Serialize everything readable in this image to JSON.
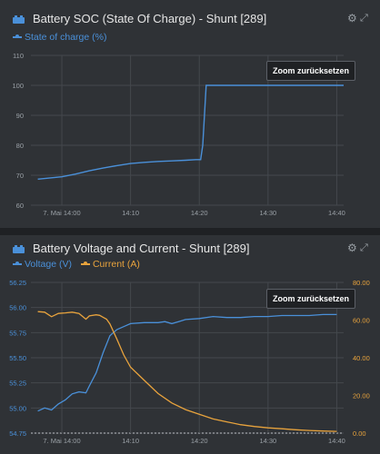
{
  "charts": [
    {
      "title": "Battery SOC (State Of Charge) - Shunt [289]",
      "legend": [
        {
          "label": "State of charge (%)",
          "color": "#4a90d9"
        }
      ],
      "zoom_label": "Zoom zurücksetzen",
      "icons": [
        "battery-icon",
        "gear-icon",
        "expand-icon"
      ]
    },
    {
      "title": "Battery Voltage and Current - Shunt [289]",
      "legend": [
        {
          "label": "Voltage (V)",
          "color": "#4a90d9"
        },
        {
          "label": "Current (A)",
          "color": "#e8a33d"
        }
      ],
      "zoom_label": "Zoom zurücksetzen",
      "icons": [
        "battery-icon",
        "gear-icon",
        "expand-icon"
      ]
    }
  ],
  "chart_data": [
    {
      "type": "line",
      "title": "Battery SOC (State Of Charge) - Shunt [289]",
      "x_ticks": [
        "7. Mai 14:00",
        "14:10",
        "14:20",
        "14:30",
        "14:40"
      ],
      "x_range_minutes": [
        -4.5,
        41
      ],
      "ylim": [
        60,
        110
      ],
      "y_ticks": [
        60,
        70,
        80,
        90,
        100,
        110
      ],
      "grid": true,
      "series": [
        {
          "name": "State of charge (%)",
          "color": "#4a90d9",
          "x": [
            -3.5,
            0,
            2,
            4,
            6,
            8,
            10,
            12,
            14,
            16,
            18,
            19.5,
            20.2,
            20.5,
            21,
            41
          ],
          "y": [
            68.7,
            69.5,
            70.4,
            71.5,
            72.4,
            73.2,
            73.9,
            74.3,
            74.6,
            74.8,
            75,
            75.2,
            75.2,
            80,
            100,
            100
          ]
        }
      ]
    },
    {
      "type": "line",
      "title": "Battery Voltage and Current - Shunt [289]",
      "x_ticks": [
        "7. Mai 14:00",
        "14:10",
        "14:20",
        "14:30",
        "14:40"
      ],
      "x_range_minutes": [
        -4.5,
        41
      ],
      "y_left": {
        "ticks": [
          54.75,
          55.0,
          55.25,
          55.5,
          55.75,
          56.0,
          56.25
        ],
        "range": [
          54.75,
          56.25
        ]
      },
      "y_right": {
        "ticks": [
          0.0,
          20.0,
          40.0,
          60.0,
          80.0
        ],
        "range": [
          0,
          80
        ]
      },
      "grid": true,
      "series": [
        {
          "name": "Voltage (V)",
          "axis": "left",
          "color": "#4a90d9",
          "x": [
            -3.5,
            -2.5,
            -1.5,
            -0.5,
            0.5,
            1.5,
            2.5,
            3.5,
            4,
            5,
            6,
            7,
            8,
            9,
            10,
            12,
            14,
            15,
            16,
            17,
            18,
            20,
            22,
            24,
            26,
            28,
            30,
            32,
            34,
            36,
            38,
            40
          ],
          "y": [
            54.97,
            55.0,
            54.98,
            55.04,
            55.08,
            55.14,
            55.16,
            55.15,
            55.22,
            55.35,
            55.55,
            55.72,
            55.78,
            55.81,
            55.84,
            55.85,
            55.85,
            55.86,
            55.84,
            55.86,
            55.88,
            55.89,
            55.91,
            55.9,
            55.9,
            55.91,
            55.91,
            55.92,
            55.92,
            55.92,
            55.93,
            55.93
          ]
        },
        {
          "name": "Current (A)",
          "axis": "right",
          "color": "#e8a33d",
          "x": [
            -3.5,
            -2.5,
            -1.5,
            -0.5,
            0.5,
            1.5,
            2.5,
            3.5,
            4,
            5,
            5.5,
            6,
            6.5,
            7,
            8,
            9,
            10,
            12,
            14,
            16,
            18,
            20,
            22,
            24,
            26,
            28,
            30,
            32,
            34,
            36,
            38,
            40
          ],
          "y": [
            64.5,
            64.2,
            61.8,
            63.5,
            63.8,
            64.2,
            63.5,
            60.5,
            62.2,
            62.8,
            62.5,
            61.5,
            60.5,
            58,
            50,
            41.5,
            35,
            28,
            21,
            16,
            12.5,
            10,
            7.5,
            6,
            4.5,
            3.5,
            2.8,
            2.3,
            1.8,
            1.4,
            1.1,
            0.9
          ]
        }
      ]
    }
  ]
}
